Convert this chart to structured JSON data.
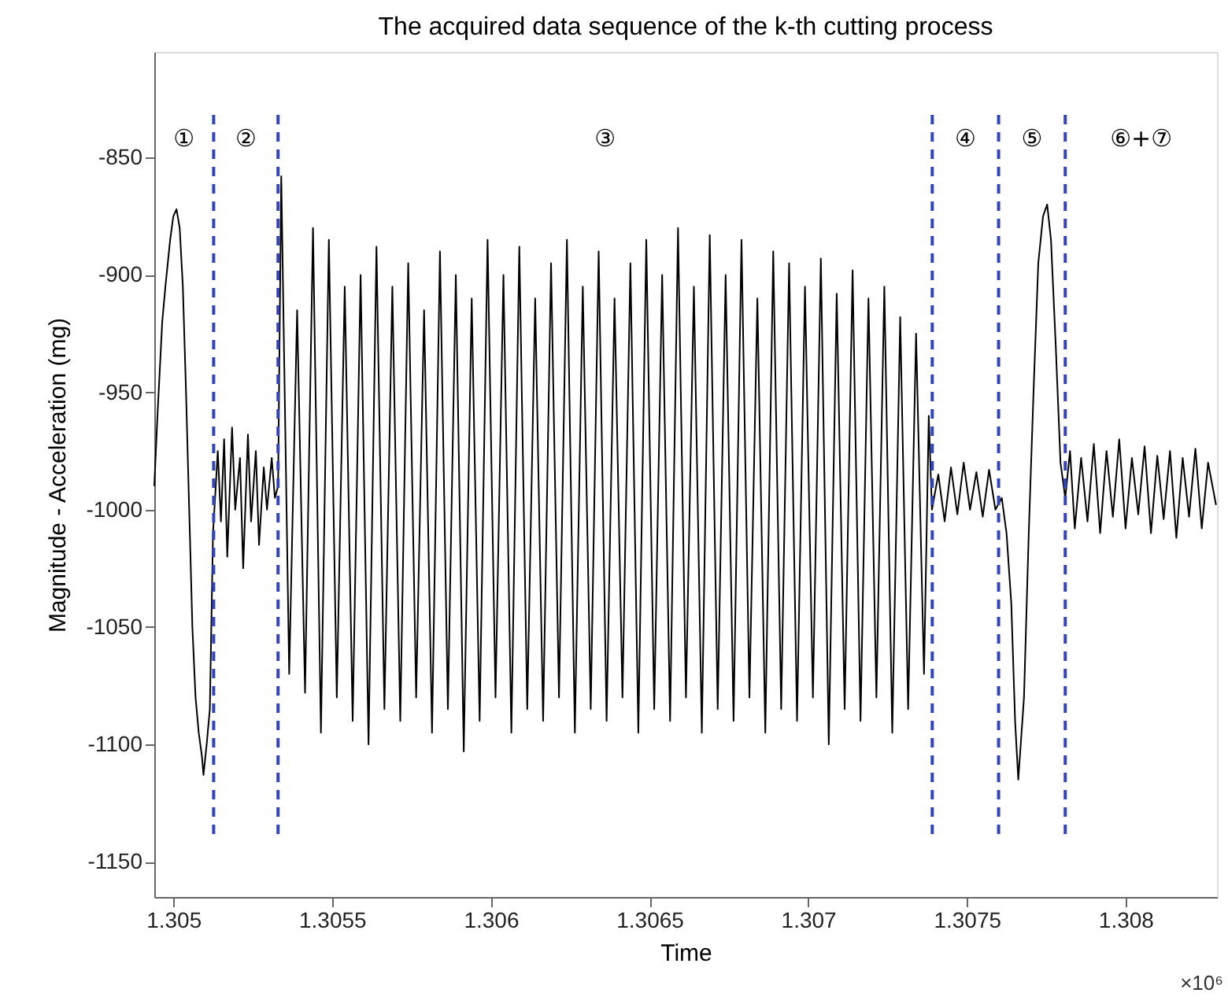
{
  "chart_data": {
    "type": "line",
    "title": "The acquired data sequence of the k-th cutting process",
    "xlabel": "Time",
    "ylabel": "Magnitude - Acceleration (mg)",
    "xlim": [
      1.30494,
      1.308288
    ],
    "ylim": [
      -1165,
      -805
    ],
    "xticks": [
      1.305,
      1.3055,
      1.306,
      1.3065,
      1.307,
      1.3075,
      1.308
    ],
    "yticks": [
      -1150,
      -1100,
      -1050,
      -1000,
      -950,
      -900,
      -850
    ],
    "grid": false,
    "marker": "none",
    "line_style": "solid",
    "series": [
      {
        "color": "#000000",
        "x": [
          1.30494,
          1.30495,
          1.304965,
          1.304975,
          1.30499,
          1.305,
          1.30501,
          1.30502,
          1.30503,
          1.30504,
          1.30505,
          1.30506,
          1.30507,
          1.30508,
          1.30509,
          1.305095,
          1.305105,
          1.305115,
          1.305125,
          1.30514,
          1.30515,
          1.30516,
          1.30517,
          1.305185,
          1.305195,
          1.30521,
          1.30522,
          1.305235,
          1.305245,
          1.30526,
          1.30527,
          1.305285,
          1.305295,
          1.30531,
          1.30532,
          1.30533,
          1.30534,
          1.305365,
          1.30539,
          1.305415,
          1.30544,
          1.305465,
          1.30549,
          1.305515,
          1.30554,
          1.305565,
          1.30559,
          1.305615,
          1.30564,
          1.305665,
          1.30569,
          1.305715,
          1.30574,
          1.305765,
          1.30579,
          1.305815,
          1.30584,
          1.305865,
          1.30589,
          1.305915,
          1.30594,
          1.305965,
          1.30599,
          1.306015,
          1.30604,
          1.306065,
          1.30609,
          1.306115,
          1.30614,
          1.306165,
          1.30619,
          1.306215,
          1.30624,
          1.306265,
          1.30629,
          1.306315,
          1.30634,
          1.306365,
          1.30639,
          1.306415,
          1.30644,
          1.306465,
          1.30649,
          1.306515,
          1.30654,
          1.306565,
          1.30659,
          1.306615,
          1.30664,
          1.306665,
          1.30669,
          1.306715,
          1.30674,
          1.306765,
          1.30679,
          1.306815,
          1.30684,
          1.306865,
          1.30689,
          1.306915,
          1.30694,
          1.306965,
          1.30699,
          1.307015,
          1.30704,
          1.307065,
          1.30709,
          1.307115,
          1.30714,
          1.307165,
          1.30719,
          1.307215,
          1.30724,
          1.307265,
          1.30729,
          1.307315,
          1.30734,
          1.307365,
          1.30738,
          1.30739,
          1.30741,
          1.30743,
          1.30745,
          1.30747,
          1.30749,
          1.30751,
          1.30753,
          1.30755,
          1.30757,
          1.30759,
          1.30761,
          1.307625,
          1.30764,
          1.307652,
          1.307662,
          1.30768,
          1.307695,
          1.30771,
          1.307725,
          1.30774,
          1.307753,
          1.307765,
          1.30778,
          1.307795,
          1.30781,
          1.307825,
          1.30784,
          1.30786,
          1.30788,
          1.3079,
          1.30792,
          1.30794,
          1.30796,
          1.30798,
          1.308,
          1.30802,
          1.30804,
          1.30806,
          1.30808,
          1.3081,
          1.30812,
          1.30814,
          1.30816,
          1.30818,
          1.3082,
          1.30822,
          1.30824,
          1.30826,
          1.308285
        ],
        "values": [
          -990,
          -960,
          -920,
          -905,
          -885,
          -875,
          -872,
          -880,
          -905,
          -950,
          -1000,
          -1050,
          -1080,
          -1095,
          -1105,
          -1113,
          -1100,
          -1085,
          -1010,
          -975,
          -1005,
          -970,
          -1020,
          -965,
          -1000,
          -978,
          -1025,
          -968,
          -1005,
          -975,
          -1015,
          -982,
          -1000,
          -978,
          -995,
          -990,
          -858,
          -1070,
          -915,
          -1078,
          -880,
          -1095,
          -885,
          -1080,
          -905,
          -1090,
          -900,
          -1100,
          -888,
          -1085,
          -905,
          -1090,
          -895,
          -1080,
          -915,
          -1095,
          -890,
          -1085,
          -900,
          -1103,
          -910,
          -1090,
          -885,
          -1080,
          -900,
          -1095,
          -888,
          -1085,
          -910,
          -1090,
          -895,
          -1080,
          -885,
          -1095,
          -905,
          -1085,
          -890,
          -1090,
          -910,
          -1080,
          -895,
          -1095,
          -885,
          -1085,
          -900,
          -1090,
          -880,
          -1080,
          -905,
          -1095,
          -883,
          -1085,
          -900,
          -1090,
          -885,
          -1080,
          -910,
          -1095,
          -890,
          -1085,
          -895,
          -1090,
          -905,
          -1080,
          -893,
          -1100,
          -908,
          -1085,
          -898,
          -1090,
          -910,
          -1080,
          -905,
          -1095,
          -918,
          -1085,
          -925,
          -1070,
          -960,
          -1000,
          -985,
          -1005,
          -982,
          -1002,
          -980,
          -1000,
          -984,
          -1003,
          -983,
          -1000,
          -995,
          -1010,
          -1040,
          -1090,
          -1115,
          -1080,
          -1010,
          -950,
          -895,
          -875,
          -870,
          -885,
          -930,
          -980,
          -995,
          -975,
          -1008,
          -978,
          -1005,
          -972,
          -1010,
          -975,
          -1003,
          -970,
          -1008,
          -978,
          -1002,
          -973,
          -1010,
          -977,
          -1004,
          -975,
          -1012,
          -978,
          -1003,
          -974,
          -1008,
          -980,
          -998
        ]
      }
    ],
    "ref_lines": [
      {
        "axis": "x",
        "value": 1.305127,
        "color": "#3344bb",
        "line_style": "dashed"
      },
      {
        "axis": "x",
        "value": 1.30533,
        "color": "#3344bb",
        "line_style": "dashed"
      },
      {
        "axis": "x",
        "value": 1.307391,
        "color": "#3344bb",
        "line_style": "dashed"
      },
      {
        "axis": "x",
        "value": 1.3076,
        "color": "#3344bb",
        "line_style": "dashed"
      },
      {
        "axis": "x",
        "value": 1.30781,
        "color": "#3344bb",
        "line_style": "dashed"
      }
    ],
    "annotations": [
      "①",
      "②",
      "③",
      "④",
      "⑤",
      "⑥+⑦",
      "×10⁶"
    ]
  }
}
